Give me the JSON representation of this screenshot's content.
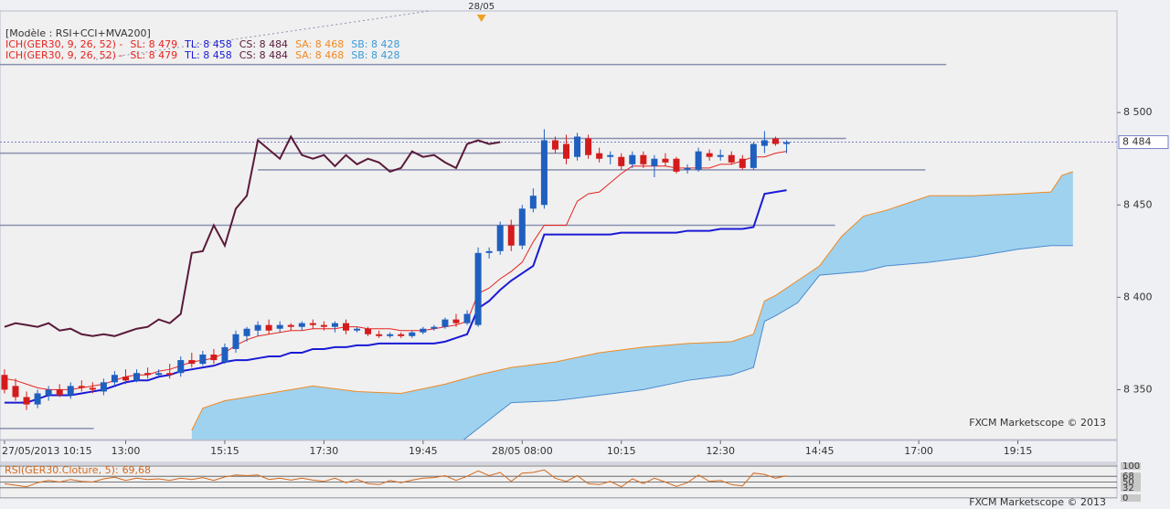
{
  "chart_data": {
    "type": "candlestick",
    "model_label": "[Modèle : RSI+CCI+MVA200]",
    "day_marker": {
      "x": 43.3,
      "label": "28/05"
    },
    "watermark": "FXCM Marketscope © 2013",
    "ichimoku_legend": {
      "name": "ICH(GER30, 9, 26, 52) -",
      "color": "#e8231f",
      "items": [
        {
          "text": "SL: 8 479",
          "color": "#e8231f"
        },
        {
          "text": "TL: 8 458",
          "color": "#1a1ad6"
        },
        {
          "text": "CS: 8 484",
          "color": "#5a1a3a"
        },
        {
          "text": "SA: 8 468",
          "color": "#f08a24"
        },
        {
          "text": "SB: 8 428",
          "color": "#3a9ad8"
        }
      ]
    },
    "xlim": [
      -0.41,
      101
    ],
    "ylim": [
      8323,
      8555
    ],
    "yticks": [
      {
        "value": 8500,
        "label": "8 500"
      },
      {
        "value": 8450,
        "label": "8 450"
      },
      {
        "value": 8400,
        "label": "8 400"
      },
      {
        "value": 8350,
        "label": "8 350"
      }
    ],
    "xticks": [
      {
        "value": 0,
        "label": "27/05/2013 10:15"
      },
      {
        "value": 11,
        "label": "13:00"
      },
      {
        "value": 20,
        "label": "15:15"
      },
      {
        "value": 29,
        "label": "17:30"
      },
      {
        "value": 38,
        "label": "19:45"
      },
      {
        "value": 47,
        "label": "28/05 08:00"
      },
      {
        "value": 56,
        "label": "10:15"
      },
      {
        "value": 65,
        "label": "12:30"
      },
      {
        "value": 74,
        "label": "14:45"
      },
      {
        "value": 83,
        "label": "17:00"
      },
      {
        "value": 92,
        "label": "19:15"
      }
    ],
    "up_color": "#1f5fbf",
    "down_color": "#d41b1b",
    "candles": {
      "open": [
        8358,
        8352,
        8346,
        8342,
        8347,
        8350,
        8347,
        8352,
        8351,
        8349,
        8354,
        8357,
        8355,
        8359,
        8358,
        8359,
        8359,
        8366,
        8364,
        8369,
        8365,
        8372,
        8379,
        8382,
        8385,
        8383,
        8385,
        8384,
        8386,
        8385,
        8384,
        8386,
        8382,
        8383,
        8380,
        8379,
        8380,
        8379,
        8381,
        8383,
        8384,
        8388,
        8386,
        8385,
        8424,
        8425,
        8439,
        8428,
        8448,
        8450,
        8485,
        8483,
        8476,
        8486,
        8478,
        8476,
        8476,
        8472,
        8477,
        8471,
        8475,
        8475,
        8469,
        8469,
        8478,
        8476,
        8477,
        8475,
        8470,
        8482,
        8486,
        8483
      ],
      "high": [
        8361,
        8356,
        8349,
        8350,
        8352,
        8353,
        8354,
        8355,
        8354,
        8356,
        8360,
        8361,
        8361,
        8362,
        8361,
        8364,
        8368,
        8370,
        8371,
        8372,
        8375,
        8382,
        8384,
        8387,
        8388,
        8387,
        8386,
        8387,
        8388,
        8387,
        8387,
        8388,
        8384,
        8384,
        8382,
        8381,
        8381,
        8382,
        8384,
        8385,
        8389,
        8391,
        8393,
        8427,
        8427,
        8441,
        8442,
        8450,
        8459,
        8491,
        8487,
        8488,
        8489,
        8488,
        8481,
        8479,
        8478,
        8479,
        8479,
        8477,
        8478,
        8476,
        8472,
        8481,
        8480,
        8480,
        8479,
        8477,
        8484,
        8490,
        8487,
        8485
      ],
      "low": [
        8348,
        8344,
        8339,
        8340,
        8344,
        8346,
        8345,
        8349,
        8348,
        8347,
        8352,
        8353,
        8354,
        8356,
        8357,
        8356,
        8357,
        8362,
        8363,
        8364,
        8364,
        8370,
        8376,
        8379,
        8380,
        8381,
        8382,
        8382,
        8383,
        8382,
        8381,
        8380,
        8381,
        8379,
        8378,
        8378,
        8378,
        8378,
        8380,
        8382,
        8383,
        8384,
        8385,
        8384,
        8421,
        8423,
        8425,
        8426,
        8446,
        8448,
        8478,
        8472,
        8474,
        8475,
        8473,
        8472,
        8469,
        8470,
        8470,
        8465,
        8471,
        8467,
        8467,
        8468,
        8474,
        8474,
        8472,
        8469,
        8469,
        8478,
        8482,
        8478
      ],
      "close": [
        8350,
        8346,
        8342,
        8348,
        8350,
        8347,
        8352,
        8351,
        8350,
        8354,
        8358,
        8355,
        8359,
        8358,
        8359,
        8358,
        8366,
        8364,
        8369,
        8366,
        8373,
        8380,
        8383,
        8385,
        8382,
        8385,
        8384,
        8386,
        8385,
        8384,
        8386,
        8382,
        8383,
        8380,
        8379,
        8380,
        8379,
        8381,
        8383,
        8384,
        8388,
        8386,
        8391,
        8424,
        8425,
        8439,
        8428,
        8448,
        8455,
        8485,
        8480,
        8475,
        8487,
        8477,
        8475,
        8477,
        8471,
        8477,
        8472,
        8475,
        8473,
        8468,
        8470,
        8479,
        8476,
        8477,
        8473,
        8470,
        8483,
        8485,
        8483,
        8484
      ]
    },
    "tenkan": {
      "color": "#e8231f",
      "values": [
        8356,
        8355,
        8353,
        8351,
        8350,
        8350,
        8350,
        8351,
        8352,
        8353,
        8355,
        8357,
        8358,
        8358,
        8360,
        8361,
        8363,
        8365,
        8366,
        8367,
        8370,
        8374,
        8377,
        8379,
        8380,
        8381,
        8382,
        8382,
        8383,
        8383,
        8383,
        8384,
        8384,
        8383,
        8383,
        8383,
        8382,
        8382,
        8382,
        8383,
        8384,
        8385,
        8387,
        8402,
        8405,
        8410,
        8414,
        8419,
        8430,
        8439,
        8439,
        8439,
        8452,
        8456,
        8457,
        8462,
        8467,
        8471,
        8471,
        8471,
        8471,
        8470,
        8470,
        8470,
        8470,
        8472,
        8472,
        8474,
        8476,
        8476,
        8478,
        8479
      ]
    },
    "kijun": {
      "color": "#1a1ad6",
      "values": [
        8343,
        8343,
        8343,
        8345,
        8347,
        8347,
        8347,
        8348,
        8349,
        8350,
        8352,
        8354,
        8355,
        8355,
        8357,
        8358,
        8360,
        8361,
        8362,
        8363,
        8365,
        8366,
        8366,
        8367,
        8368,
        8368,
        8370,
        8370,
        8372,
        8372,
        8373,
        8373,
        8374,
        8374,
        8375,
        8375,
        8375,
        8375,
        8375,
        8375,
        8376,
        8378,
        8380,
        8394,
        8398,
        8404,
        8409,
        8413,
        8417,
        8434,
        8434,
        8434,
        8434,
        8434,
        8434,
        8434,
        8435,
        8435,
        8435,
        8435,
        8435,
        8435,
        8436,
        8436,
        8436,
        8437,
        8437,
        8437,
        8438,
        8456,
        8457,
        8458
      ]
    },
    "chikou": {
      "color": "#5a1a3a",
      "values": [
        8384,
        8386,
        8385,
        8384,
        8386,
        8382,
        8383,
        8380,
        8379,
        8380,
        8379,
        8381,
        8383,
        8384,
        8388,
        8386,
        8391,
        8424,
        8425,
        8439,
        8428,
        8448,
        8455,
        8485,
        8480,
        8475,
        8487,
        8477,
        8475,
        8477,
        8471,
        8477,
        8472,
        8475,
        8473,
        8468,
        8470,
        8479,
        8476,
        8477,
        8473,
        8470,
        8483,
        8485,
        8483,
        8484
      ]
    },
    "cloud": {
      "fill": "#9fd2ee",
      "x": [
        17,
        18,
        20,
        24,
        28,
        32,
        36,
        40,
        43,
        46,
        50,
        54,
        58,
        62,
        66,
        68,
        69,
        70,
        72,
        74,
        76,
        78,
        80,
        84,
        88,
        92,
        95,
        96,
        97
      ],
      "senkou_a": {
        "color": "#f08a24",
        "values": [
          8328,
          8340,
          8344,
          8348,
          8352,
          8349,
          8348,
          8353,
          8358,
          8362,
          8365,
          8370,
          8373,
          8375,
          8376,
          8380,
          8398,
          8401,
          8409,
          8417,
          8433,
          8444,
          8447,
          8455,
          8455,
          8456,
          8457,
          8466,
          8468
        ]
      },
      "senkou_b": {
        "color": "#4a8ad0",
        "values": [
          8315,
          8315,
          8315,
          8315,
          8315,
          8315,
          8315,
          8315,
          8329,
          8343,
          8344,
          8347,
          8350,
          8355,
          8358,
          8362,
          8387,
          8390,
          8397,
          8412,
          8413,
          8414,
          8417,
          8419,
          8422,
          8426,
          8428,
          8428,
          8428
        ]
      }
    },
    "levels": {
      "color": "#8a8fb0",
      "items": [
        {
          "value": 8526,
          "x": [
            -0.41,
            85.5
          ]
        },
        {
          "value": 8486,
          "x": [
            23,
            76.4
          ]
        },
        {
          "value": 8478,
          "x": [
            -0.41,
            51
          ]
        },
        {
          "value": 8469,
          "x": [
            23,
            83.6
          ]
        },
        {
          "value": 8439,
          "x": [
            -0.41,
            75.4
          ]
        },
        {
          "value": 8329,
          "x": [
            -0.41,
            8.1
          ]
        }
      ]
    },
    "last_price": {
      "value": 8484,
      "label": "8 484"
    },
    "rsi": {
      "label": "RSI(GER30.Cloture, 5):",
      "current": 69.68,
      "current_label": "69,68",
      "color": "#d2691e",
      "ylim": [
        0,
        100
      ],
      "yticks": [
        100,
        68,
        50,
        32,
        0
      ],
      "values": [
        45,
        40,
        35,
        48,
        55,
        50,
        58,
        52,
        50,
        60,
        65,
        55,
        62,
        58,
        60,
        55,
        62,
        58,
        64,
        55,
        66,
        72,
        70,
        72,
        58,
        62,
        56,
        62,
        56,
        52,
        62,
        48,
        58,
        45,
        42,
        55,
        48,
        56,
        62,
        64,
        70,
        55,
        68,
        85,
        70,
        80,
        52,
        78,
        80,
        88,
        62,
        52,
        70,
        45,
        42,
        52,
        35,
        60,
        45,
        62,
        50,
        36,
        48,
        72,
        52,
        55,
        42,
        38,
        78,
        74,
        62,
        69.68
      ]
    }
  }
}
